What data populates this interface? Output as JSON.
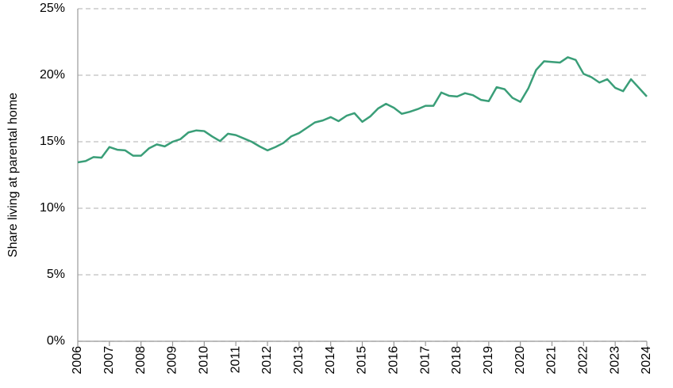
{
  "chart_data": {
    "type": "line",
    "ylabel": "Share living at parental home",
    "xlim": [
      2006,
      2024
    ],
    "xticks": [
      2006,
      2007,
      2008,
      2009,
      2010,
      2011,
      2012,
      2013,
      2014,
      2015,
      2016,
      2017,
      2018,
      2019,
      2020,
      2021,
      2022,
      2023,
      2024
    ],
    "ylim": [
      0,
      25
    ],
    "yticks": [
      {
        "value": 0,
        "label": "0%"
      },
      {
        "value": 5,
        "label": "5%"
      },
      {
        "value": 10,
        "label": "10%"
      },
      {
        "value": 15,
        "label": "15%"
      },
      {
        "value": 20,
        "label": "20%"
      },
      {
        "value": 25,
        "label": "25%"
      }
    ],
    "grid": true,
    "x": [
      2006,
      2006.25,
      2006.5,
      2006.75,
      2007,
      2007.25,
      2007.5,
      2007.75,
      2008,
      2008.25,
      2008.5,
      2008.75,
      2009,
      2009.25,
      2009.5,
      2009.75,
      2010,
      2010.25,
      2010.5,
      2010.75,
      2011,
      2011.25,
      2011.5,
      2011.75,
      2012,
      2012.25,
      2012.5,
      2012.75,
      2013,
      2013.25,
      2013.5,
      2013.75,
      2014,
      2014.25,
      2014.5,
      2014.75,
      2015,
      2015.25,
      2015.5,
      2015.75,
      2016,
      2016.25,
      2016.5,
      2016.75,
      2017,
      2017.25,
      2017.5,
      2017.75,
      2018,
      2018.25,
      2018.5,
      2018.75,
      2019,
      2019.25,
      2019.5,
      2019.75,
      2020,
      2020.25,
      2020.5,
      2020.75,
      2021,
      2021.25,
      2021.5,
      2021.75,
      2022,
      2022.25,
      2022.5,
      2022.75,
      2023,
      2023.25,
      2023.5,
      2023.75,
      2024
    ],
    "series": [
      {
        "color": "#3a9e78",
        "values": [
          13.45,
          13.55,
          13.85,
          13.8,
          14.6,
          14.4,
          14.35,
          13.95,
          13.95,
          14.5,
          14.8,
          14.65,
          15.0,
          15.2,
          15.7,
          15.85,
          15.8,
          15.4,
          15.05,
          15.6,
          15.5,
          15.25,
          15.0,
          14.65,
          14.35,
          14.6,
          14.9,
          15.4,
          15.65,
          16.05,
          16.45,
          16.6,
          16.85,
          16.55,
          16.95,
          17.15,
          16.5,
          16.9,
          17.5,
          17.85,
          17.55,
          17.1,
          17.25,
          17.45,
          17.7,
          17.7,
          18.7,
          18.45,
          18.4,
          18.65,
          18.5,
          18.15,
          18.05,
          19.1,
          18.95,
          18.3,
          18.0,
          19.0,
          20.4,
          21.05,
          21.0,
          20.95,
          21.35,
          21.15,
          20.1,
          19.85,
          19.45,
          19.7,
          19.05,
          18.8,
          19.7,
          19.05,
          18.4
        ]
      }
    ]
  }
}
